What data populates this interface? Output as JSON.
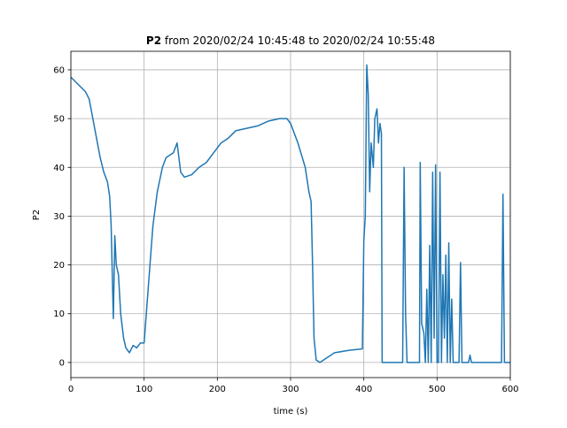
{
  "chart_data": {
    "type": "line",
    "title_bold": "P2",
    "title": "from 2020/02/24 10:45:48 to 2020/02/24 10:55:48",
    "xlabel": "time (s)",
    "ylabel": "P2",
    "xlim": [
      0,
      600
    ],
    "ylim": [
      -3.1,
      63.8
    ],
    "xticks": [
      0,
      100,
      200,
      300,
      400,
      500,
      600
    ],
    "yticks": [
      0,
      10,
      20,
      30,
      40,
      50,
      60
    ],
    "grid": true,
    "series": [
      {
        "name": "P2",
        "color": "#1f77b4",
        "x": [
          0,
          10,
          20,
          25,
          30,
          35,
          40,
          45,
          50,
          53,
          55,
          57,
          58,
          60,
          62,
          65,
          68,
          72,
          75,
          80,
          85,
          90,
          95,
          100,
          103,
          107,
          112,
          118,
          125,
          130,
          140,
          145,
          150,
          155,
          165,
          175,
          185,
          195,
          205,
          215,
          225,
          240,
          255,
          270,
          285,
          295,
          300,
          310,
          320,
          325,
          328,
          330,
          332,
          335,
          340,
          350,
          360,
          380,
          398,
          400,
          402,
          404,
          406,
          408,
          410,
          413,
          415,
          418,
          420,
          422,
          424,
          425,
          453,
          455,
          457,
          459,
          476,
          477,
          479,
          482,
          484,
          486,
          488,
          490,
          492,
          494,
          496,
          498,
          500,
          502,
          504,
          506,
          508,
          510,
          512,
          514,
          516,
          518,
          520,
          522,
          530,
          532,
          534,
          543,
          545,
          547,
          588,
          590,
          592,
          600
        ],
        "values": [
          58.5,
          57,
          55.5,
          54,
          50,
          46,
          42,
          39,
          37,
          34,
          28,
          15,
          9,
          26,
          20,
          18,
          10,
          5,
          3,
          2,
          3.5,
          3,
          4,
          4,
          10,
          18,
          28,
          35,
          40,
          42,
          43,
          45,
          39,
          38,
          38.5,
          40,
          41,
          43,
          45,
          46,
          47.5,
          48,
          48.5,
          49.5,
          50,
          50,
          49,
          45,
          40,
          35,
          33,
          20,
          5,
          0.5,
          0,
          1,
          2,
          2.5,
          2.8,
          25,
          30,
          61,
          55,
          35,
          45,
          40,
          50,
          52,
          45,
          49,
          47,
          0,
          0,
          40,
          10,
          0,
          0,
          41,
          8,
          6,
          0,
          15,
          0,
          24,
          0,
          39,
          5,
          40.5,
          0,
          0,
          39,
          0,
          18,
          5,
          22,
          0,
          24.5,
          0,
          13,
          0,
          0,
          20.5,
          0,
          0,
          1.5,
          0,
          0,
          34.5,
          0,
          0
        ]
      }
    ]
  }
}
